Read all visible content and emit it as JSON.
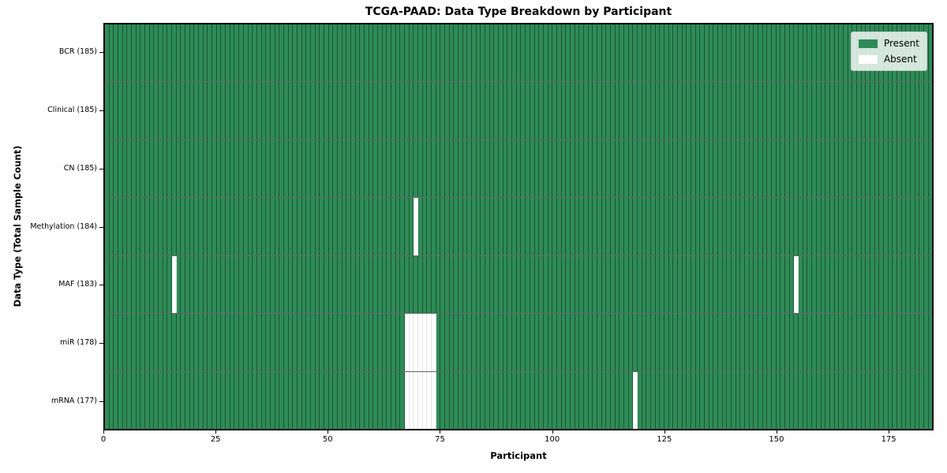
{
  "chart_data": {
    "type": "heatmap",
    "title": "TCGA-PAAD: Data Type Breakdown by Participant",
    "xlabel": "Participant",
    "ylabel": "Data Type (Total Sample Count)",
    "x_ticks": [
      0,
      25,
      50,
      75,
      100,
      125,
      150,
      175
    ],
    "x_range": [
      0,
      185
    ],
    "n_participants": 185,
    "rows": [
      {
        "label": "BCR (185)",
        "data_type": "BCR",
        "total_samples": 185,
        "absent_participants": []
      },
      {
        "label": "Clinical (185)",
        "data_type": "Clinical",
        "total_samples": 185,
        "absent_participants": []
      },
      {
        "label": "CN (185)",
        "data_type": "CN",
        "total_samples": 185,
        "absent_participants": []
      },
      {
        "label": "Methylation (184)",
        "data_type": "Methylation",
        "total_samples": 184,
        "absent_participants": [
          69
        ]
      },
      {
        "label": "MAF (183)",
        "data_type": "MAF",
        "total_samples": 183,
        "absent_participants": [
          15,
          154
        ]
      },
      {
        "label": "miR (178)",
        "data_type": "miR",
        "total_samples": 178,
        "absent_participants": [
          67,
          68,
          69,
          70,
          71,
          72,
          73
        ]
      },
      {
        "label": "mRNA (177)",
        "data_type": "mRNA",
        "total_samples": 177,
        "absent_participants": [
          67,
          68,
          69,
          70,
          71,
          72,
          73,
          118
        ]
      }
    ],
    "legend": {
      "position": "upper right",
      "entries": [
        {
          "label": "Present",
          "color": "#2e8b57"
        },
        {
          "label": "Absent",
          "color": "#ffffff"
        }
      ]
    },
    "colors": {
      "present": "#2e8b57",
      "absent": "#ffffff"
    },
    "layout_hints": {
      "grid": "per-participant vertical cells",
      "row_separators": true
    }
  }
}
